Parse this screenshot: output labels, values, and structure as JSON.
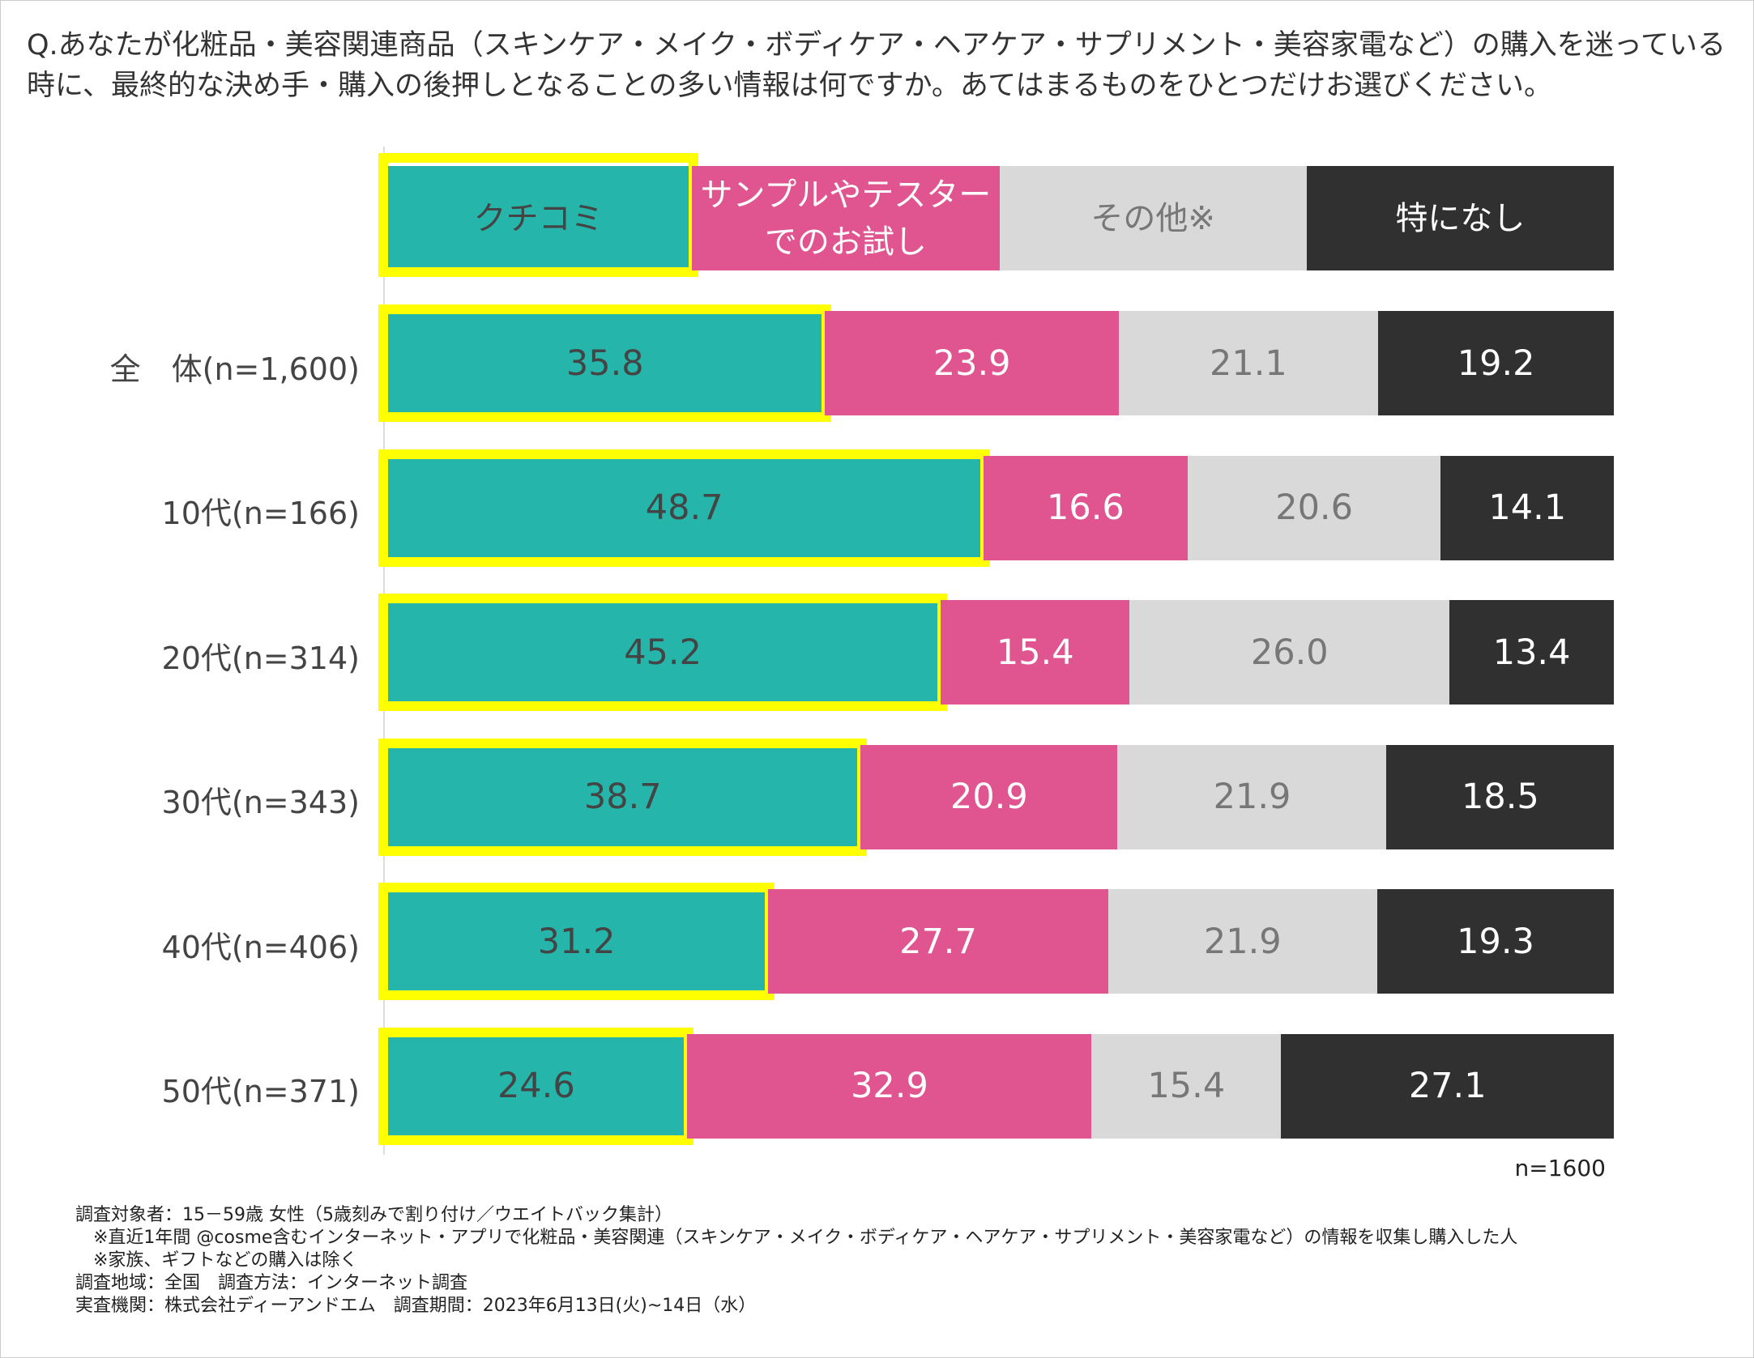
{
  "title": "Q.あなたが化粧品・美容関連商品（スキンケア・メイク・ボディケア・ヘアケア・サプリメント・美容家電など）の購入を迷っている時に、最終的な決め手・購入の後押しとなることの多い情報は何ですか。あてはまるものをひとつだけお選びください。",
  "chart_data": {
    "type": "bar",
    "orientation": "horizontal",
    "stacked": "100%",
    "categories": [
      "全　体(n=1,600)",
      "10代(n=166)",
      "20代(n=314)",
      "30代(n=343)",
      "40代(n=406)",
      "50代(n=371)"
    ],
    "series": [
      {
        "name": "クチコミ",
        "color": "#26b5aa",
        "text_color": "#444444",
        "highlighted": true,
        "values": [
          35.8,
          48.7,
          45.2,
          38.7,
          31.2,
          24.6
        ]
      },
      {
        "name": "サンプルやテスターでのお試し",
        "color": "#e05590",
        "text_color": "#ffffff",
        "values": [
          23.9,
          16.6,
          15.4,
          20.9,
          27.7,
          32.9
        ]
      },
      {
        "name": "その他※",
        "color": "#d9d9d9",
        "text_color": "#777777",
        "values": [
          21.1,
          20.6,
          26.0,
          21.9,
          21.9,
          15.4
        ]
      },
      {
        "name": "特になし",
        "color": "#303030",
        "text_color": "#ffffff",
        "values": [
          19.2,
          14.1,
          13.4,
          18.5,
          19.3,
          27.1
        ]
      }
    ],
    "legend_position": "top",
    "highlight_color": "#ffff00",
    "legend_labels": [
      [
        "クチコミ"
      ],
      [
        "サンプルやテスター",
        "でのお試し"
      ],
      [
        "その他※"
      ],
      [
        "特になし"
      ]
    ],
    "sample_note": "n=1600"
  },
  "notes": [
    "調査対象者：15－59歳 女性（5歳刻みで割り付け／ウエイトバック集計）",
    "　※直近1年間 @cosme含むインターネット・アプリで化粧品・美容関連（スキンケア・メイク・ボディケア・ヘアケア・サプリメント・美容家電など）の情報を収集し購入した人",
    "　※家族、ギフトなどの購入は除く",
    "調査地域：全国　調査方法：インターネット調査",
    "実査機関：株式会社ディーアンドエム　調査期間：2023年6月13日(火)~14日（水）"
  ]
}
